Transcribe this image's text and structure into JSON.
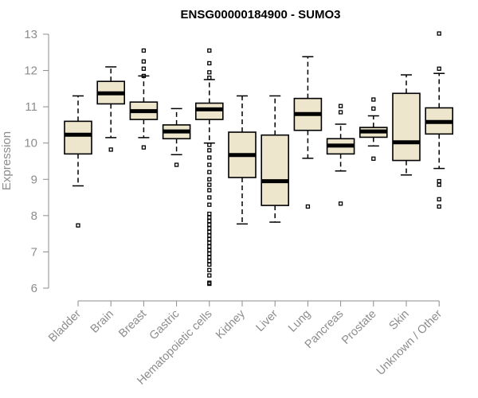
{
  "chart_data": {
    "type": "boxplot",
    "title": "ENSG00000184900 - SUMO3",
    "xlabel": "",
    "ylabel": "Expression",
    "ylim": [
      6,
      13
    ],
    "yticks": [
      6,
      7,
      8,
      9,
      10,
      11,
      12,
      13
    ],
    "categories": [
      "Bladder",
      "Brain",
      "Breast",
      "Gastric",
      "Hematopoietic cells",
      "Kidney",
      "Liver",
      "Lung",
      "Pancreas",
      "Prostate",
      "Skin",
      "Unknown / Other"
    ],
    "boxes": [
      {
        "name": "Bladder",
        "whisker_low": 8.82,
        "q1": 9.7,
        "median": 10.23,
        "q3": 10.6,
        "whisker_high": 11.3,
        "outliers": [
          7.73
        ]
      },
      {
        "name": "Brain",
        "whisker_low": 10.15,
        "q1": 11.08,
        "median": 11.37,
        "q3": 11.7,
        "whisker_high": 12.1,
        "outliers": [
          9.82
        ]
      },
      {
        "name": "Breast",
        "whisker_low": 10.15,
        "q1": 10.65,
        "median": 10.88,
        "q3": 11.13,
        "whisker_high": 11.85,
        "outliers": [
          12.55,
          12.25,
          12.05,
          11.85,
          9.88
        ]
      },
      {
        "name": "Gastric",
        "whisker_low": 9.68,
        "q1": 10.12,
        "median": 10.32,
        "q3": 10.5,
        "whisker_high": 10.95,
        "outliers": [
          9.4
        ]
      },
      {
        "name": "Hematopoietic cells",
        "whisker_low": 10.0,
        "q1": 10.65,
        "median": 10.93,
        "q3": 11.1,
        "whisker_high": 11.75,
        "outliers": [
          12.55,
          12.2,
          11.95,
          11.8,
          9.95,
          9.8,
          9.6,
          9.4,
          9.2,
          9.0,
          8.85,
          8.7,
          8.5,
          8.3,
          8.05,
          7.95,
          7.85,
          7.75,
          7.65,
          7.55,
          7.45,
          7.35,
          7.25,
          7.15,
          7.05,
          6.95,
          6.85,
          6.75,
          6.65,
          6.5,
          6.35,
          6.15,
          6.12
        ]
      },
      {
        "name": "Kidney",
        "whisker_low": 7.77,
        "q1": 9.05,
        "median": 9.67,
        "q3": 10.3,
        "whisker_high": 11.3,
        "outliers": []
      },
      {
        "name": "Liver",
        "whisker_low": 7.82,
        "q1": 8.28,
        "median": 8.95,
        "q3": 10.22,
        "whisker_high": 11.3,
        "outliers": []
      },
      {
        "name": "Lung",
        "whisker_low": 9.58,
        "q1": 10.35,
        "median": 10.8,
        "q3": 11.23,
        "whisker_high": 12.38,
        "outliers": [
          8.25
        ]
      },
      {
        "name": "Pancreas",
        "whisker_low": 9.23,
        "q1": 9.7,
        "median": 9.93,
        "q3": 10.12,
        "whisker_high": 10.52,
        "outliers": [
          11.02,
          10.85,
          8.33
        ]
      },
      {
        "name": "Prostate",
        "whisker_low": 9.92,
        "q1": 10.16,
        "median": 10.32,
        "q3": 10.43,
        "whisker_high": 10.75,
        "outliers": [
          11.2,
          10.95,
          9.57
        ]
      },
      {
        "name": "Skin",
        "whisker_low": 9.12,
        "q1": 9.52,
        "median": 10.02,
        "q3": 11.37,
        "whisker_high": 11.88,
        "outliers": []
      },
      {
        "name": "Unknown / Other",
        "whisker_low": 9.3,
        "q1": 10.25,
        "median": 10.58,
        "q3": 10.97,
        "whisker_high": 11.92,
        "outliers": [
          13.02,
          12.05,
          8.95,
          8.85,
          8.45,
          8.25
        ]
      }
    ],
    "colors": {
      "box_fill": "#ede6cc",
      "box_stroke": "#000000",
      "axis": "#8c8c8c"
    }
  }
}
